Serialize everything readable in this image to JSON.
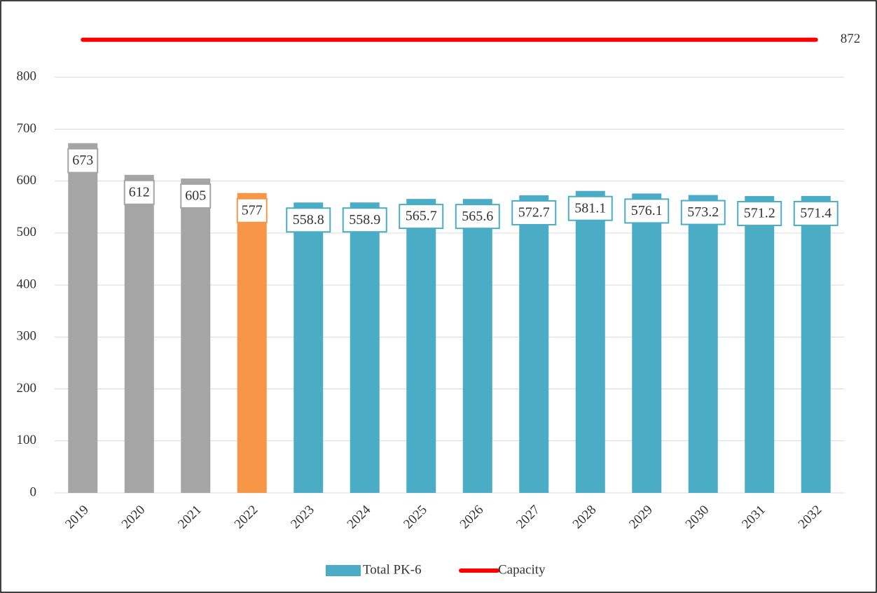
{
  "chart_data": {
    "type": "bar",
    "categories": [
      "2019",
      "2020",
      "2021",
      "2022",
      "2023",
      "2024",
      "2025",
      "2026",
      "2027",
      "2028",
      "2029",
      "2030",
      "2031",
      "2032"
    ],
    "series": [
      {
        "name": "Total PK-6",
        "color": "#4bacc6",
        "type": "bar",
        "values": [
          673,
          612,
          605,
          577,
          558.8,
          558.9,
          565.7,
          565.6,
          572.7,
          581.1,
          576.1,
          573.2,
          571.2,
          571.4
        ],
        "bar_colors": [
          "#a5a5a5",
          "#a5a5a5",
          "#a5a5a5",
          "#f79646",
          "#4bacc6",
          "#4bacc6",
          "#4bacc6",
          "#4bacc6",
          "#4bacc6",
          "#4bacc6",
          "#4bacc6",
          "#4bacc6",
          "#4bacc6",
          "#4bacc6"
        ]
      },
      {
        "name": "Capacity",
        "color": "#ff0000",
        "type": "line",
        "values": [
          872,
          872,
          872,
          872,
          872,
          872,
          872,
          872,
          872,
          872,
          872,
          872,
          872,
          872
        ]
      }
    ],
    "ylim": [
      0,
      900
    ],
    "yticks": [
      0,
      100,
      200,
      300,
      400,
      500,
      600,
      700,
      800
    ],
    "grid": true,
    "legend": "bottom"
  }
}
